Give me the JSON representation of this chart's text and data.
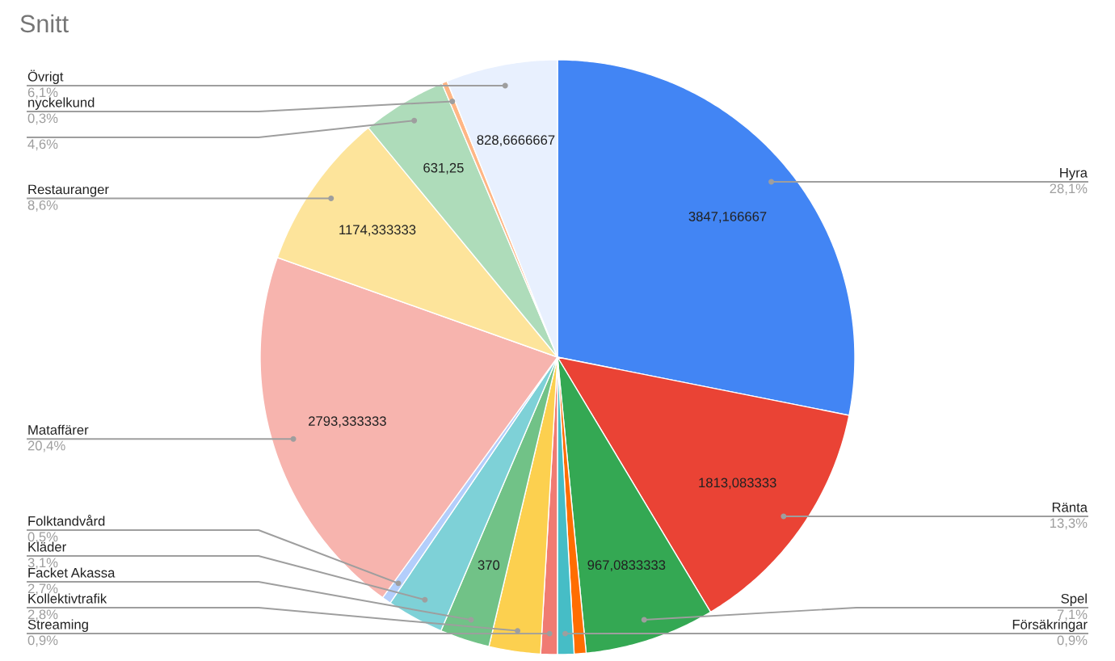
{
  "chart_data": {
    "type": "pie",
    "title": "Snitt",
    "categories": [
      "Hyra",
      "Ränta",
      "Spel",
      null,
      "Försäkringar",
      "Streaming",
      "Kollektivtrafik",
      "Facket Akassa",
      "Kläder",
      "Folktandvård",
      "Mataffärer",
      "Restauranger",
      null,
      "nyckelkund",
      "Övrigt"
    ],
    "values": [
      3847.166667,
      1813.083333,
      967.0833333,
      88,
      123,
      123,
      383,
      370,
      424,
      68,
      2793.333333,
      1174.333333,
      631.25,
      41,
      828.6666667
    ],
    "colors": [
      "#4285f4",
      "#ea4335",
      "#34a853",
      "#ff6d01",
      "#46bdc6",
      "#f07b72",
      "#fcd04f",
      "#71c287",
      "#7ed1d7",
      "#b3cefb",
      "#f7b4ae",
      "#fde49b",
      "#aedcba",
      "#ffb685",
      "#e8f0fe"
    ],
    "value_labels": [
      "3847,166667",
      "1813,083333",
      "967,0833333",
      null,
      null,
      null,
      null,
      "370",
      null,
      null,
      "2793,333333",
      "1174,333333",
      "631,25",
      null,
      "828,6666667"
    ],
    "annotations": [
      "28,1%",
      "13,3%",
      "7,1%",
      "0,9%",
      "0,9%",
      "2,8%",
      "2,7%",
      "3,1%",
      "0,5%",
      "20,4%",
      "8,6%",
      "4,6%",
      "0,3%",
      "6,1%"
    ]
  }
}
